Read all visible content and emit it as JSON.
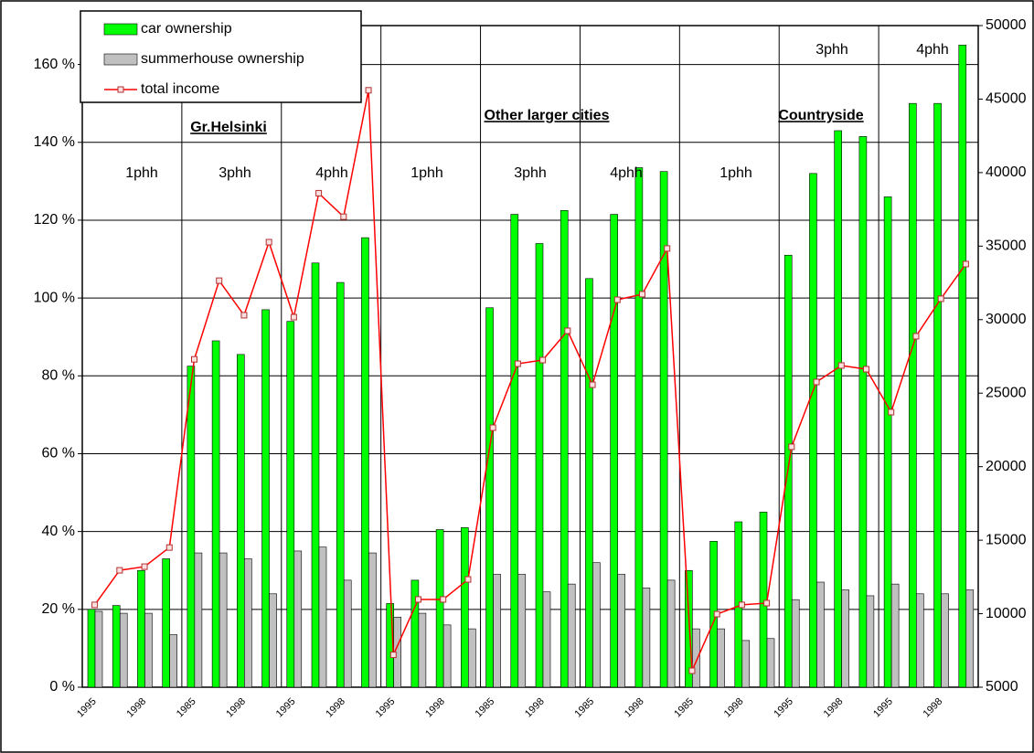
{
  "chart_data": {
    "type": "bar",
    "categories": [
      "1995",
      null,
      "1998",
      null,
      "1985",
      null,
      "1998",
      null,
      "1995",
      null,
      "1998",
      null,
      "1995",
      null,
      "1998",
      null,
      "1985",
      null,
      "1998",
      null,
      "1985",
      null,
      "1998",
      null,
      "1985",
      null,
      "1998",
      null,
      "1995",
      null,
      "1998",
      null,
      "1995",
      null,
      "1998",
      null
    ],
    "series": [
      {
        "name": "car ownership",
        "color": "#00ff00",
        "values": [
          20,
          21,
          30,
          33,
          82.5,
          89,
          85.5,
          97,
          94,
          109,
          104,
          115.5,
          21.5,
          27.5,
          40.5,
          41,
          97.5,
          121.5,
          114,
          122.5,
          105,
          121.5,
          133.5,
          132.5,
          30,
          37.5,
          42.5,
          45,
          111,
          132,
          143,
          141.5,
          126,
          150,
          150,
          165
        ]
      },
      {
        "name": "summerhouse ownership",
        "color": "#c0c0c0",
        "values": [
          19.5,
          19,
          19,
          13.5,
          34.5,
          34.5,
          33,
          24,
          35,
          36,
          27.5,
          34.5,
          18,
          19,
          16,
          15,
          29,
          29,
          24.5,
          26.5,
          32,
          29,
          25.5,
          27.5,
          15,
          15,
          12,
          12.5,
          22.5,
          27,
          25,
          23.5,
          26.5,
          24,
          24,
          25
        ]
      },
      {
        "name": "total income",
        "color": "#ff0000",
        "axis": "y2",
        "values": [
          10600,
          12950,
          13200,
          14500,
          27300,
          32650,
          30300,
          35270,
          30170,
          38600,
          37000,
          45600,
          7200,
          10970,
          10970,
          12330,
          22650,
          27000,
          27250,
          29240,
          25570,
          31350,
          31730,
          34840,
          6120,
          9970,
          10600,
          10720,
          21350,
          25760,
          26880,
          26630,
          23710,
          28870,
          31420,
          33780
        ]
      }
    ],
    "ylim": [
      0,
      170
    ],
    "yticks": [
      {
        "value": 0,
        "label": "0 %"
      },
      {
        "value": 20,
        "label": "20 %"
      },
      {
        "value": 40,
        "label": "40 %"
      },
      {
        "value": 60,
        "label": "60 %"
      },
      {
        "value": 80,
        "label": "80 %"
      },
      {
        "value": 100,
        "label": "100 %"
      },
      {
        "value": 120,
        "label": "120 %"
      },
      {
        "value": 140,
        "label": "140 %"
      },
      {
        "value": 160,
        "label": "160 %"
      }
    ],
    "y2lim": [
      5000,
      50000
    ],
    "y2ticks": [
      5000,
      10000,
      15000,
      20000,
      25000,
      30000,
      35000,
      40000,
      45000,
      50000
    ],
    "grid": true,
    "legend": "upper left",
    "annotations": [
      "Gr.Helsinki",
      "Other larger  cities",
      "Countryside",
      "1phh",
      "3phh",
      "4phh",
      "1phh",
      "3phh",
      "4phh",
      "1phh",
      "3phh",
      "4phh"
    ]
  }
}
